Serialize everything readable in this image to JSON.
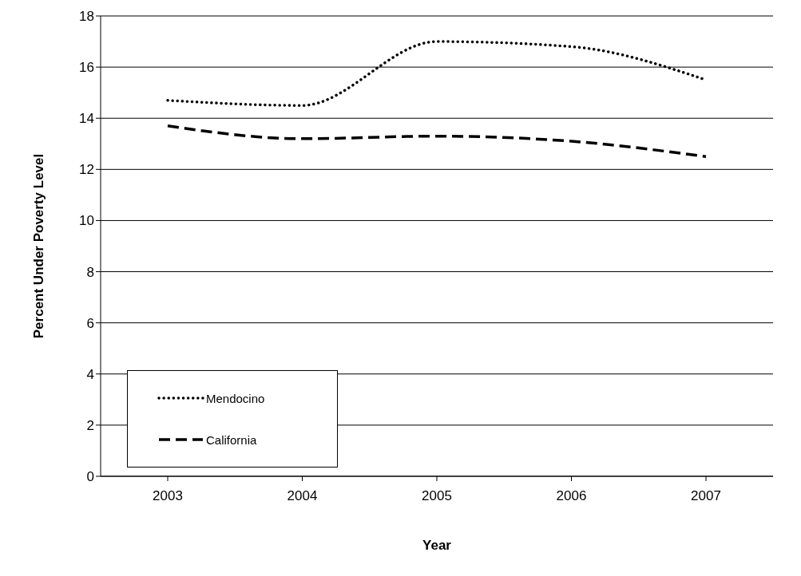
{
  "chart_data": {
    "type": "line",
    "xlabel": "Year",
    "ylabel": "Percent Under Poverty Level",
    "categories": [
      "2003",
      "2004",
      "2005",
      "2006",
      "2007"
    ],
    "series": [
      {
        "name": "Mendocino",
        "color": "#000000",
        "line_style": "dotted",
        "values": [
          14.7,
          14.5,
          17.0,
          16.8,
          15.5
        ]
      },
      {
        "name": "California",
        "color": "#000000",
        "line_style": "dashed",
        "values": [
          13.7,
          13.2,
          13.3,
          13.1,
          12.5
        ]
      }
    ],
    "ylim": [
      0,
      18
    ],
    "yticks": [
      0,
      2,
      4,
      6,
      8,
      10,
      12,
      14,
      16,
      18
    ],
    "grid": "y",
    "legend": "bottom left",
    "marker": "none"
  }
}
